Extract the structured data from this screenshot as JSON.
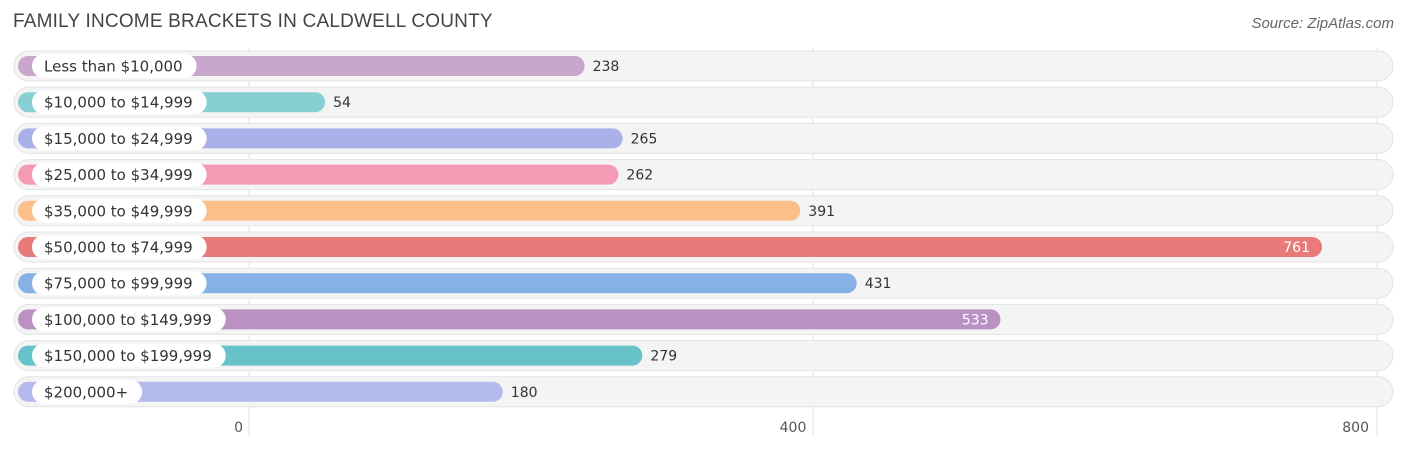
{
  "header": {
    "title": "FAMILY INCOME BRACKETS IN CALDWELL COUNTY",
    "source": "Source: ZipAtlas.com"
  },
  "chart_data": {
    "type": "bar",
    "orientation": "horizontal",
    "title": "FAMILY INCOME BRACKETS IN CALDWELL COUNTY",
    "categories": [
      "Less than $10,000",
      "$10,000 to $14,999",
      "$15,000 to $24,999",
      "$25,000 to $34,999",
      "$35,000 to $49,999",
      "$50,000 to $74,999",
      "$75,000 to $99,999",
      "$100,000 to $149,999",
      "$150,000 to $199,999",
      "$200,000+"
    ],
    "values": [
      238,
      54,
      265,
      262,
      391,
      761,
      431,
      533,
      279,
      180
    ],
    "colors": [
      "#c9a7cc",
      "#88cfd4",
      "#a9b1e8",
      "#f59ab5",
      "#fbc08a",
      "#e87b7a",
      "#86b1e5",
      "#b992c3",
      "#67c3c9",
      "#b4baec"
    ],
    "xlim": [
      0,
      800
    ],
    "ticks": [
      0,
      400,
      800
    ],
    "tick_labels": [
      "0",
      "400",
      "800"
    ],
    "grid": true,
    "xlabel": "",
    "ylabel": ""
  }
}
